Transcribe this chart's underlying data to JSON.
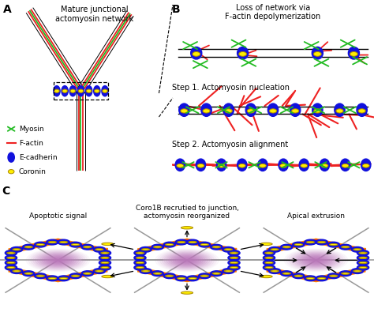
{
  "panel_A_title": "Mature junctional\nactomyosin network",
  "panel_B_title1": "Loss of network via\nF-actin depolymerization",
  "panel_B_title2": "Step 1. Actomyosin nucleation",
  "panel_B_title3": "Step 2. Actomyosin alignment",
  "panel_C_title1": "Apoptotic signal",
  "panel_C_title2": "Coro1B recrutied to junction,\nactomyosin reorganized",
  "panel_C_title3": "Apical extrusion",
  "legend_myosin": "Myosin",
  "legend_factin": "F-actin",
  "legend_ecadherin": "E-cadherin",
  "legend_coronin": "Coronin",
  "color_myosin": "#22bb22",
  "color_factin": "#ee2222",
  "color_ecadherin": "#1111dd",
  "color_coronin": "#ffee00",
  "color_jline": "#111111",
  "color_gray_line": "#999999",
  "bg_color": "#ffffff",
  "text_color": "#000000",
  "panel_label_size": 10,
  "body_text_size": 7.0
}
